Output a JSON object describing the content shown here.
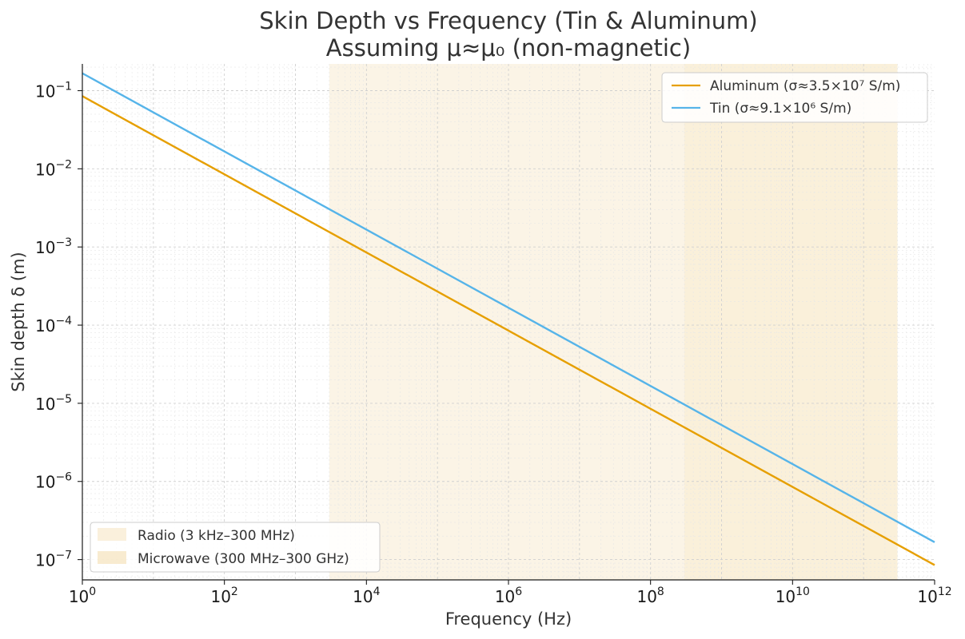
{
  "chart_data": {
    "type": "line",
    "title": "Skin Depth vs Frequency (Tin & Aluminum)",
    "subtitle": "Assuming μ≈μ₀ (non-magnetic)",
    "xlabel": "Frequency (Hz)",
    "ylabel": "Skin depth δ (m)",
    "x_scale": "log",
    "y_scale": "log",
    "xlim": [
      1,
      1000000000000.0
    ],
    "ylim": [
      5.5e-08,
      0.22
    ],
    "x_ticks": [
      {
        "value": 1,
        "base": "10",
        "exp": "0"
      },
      {
        "value": 100,
        "base": "10",
        "exp": "2"
      },
      {
        "value": 10000,
        "base": "10",
        "exp": "4"
      },
      {
        "value": 1000000,
        "base": "10",
        "exp": "6"
      },
      {
        "value": 100000000,
        "base": "10",
        "exp": "8"
      },
      {
        "value": 10000000000,
        "base": "10",
        "exp": "10"
      },
      {
        "value": 1000000000000,
        "base": "10",
        "exp": "12"
      }
    ],
    "y_ticks": [
      {
        "value": 0.1,
        "base": "10",
        "exp": "−1"
      },
      {
        "value": 0.01,
        "base": "10",
        "exp": "−2"
      },
      {
        "value": 0.001,
        "base": "10",
        "exp": "−3"
      },
      {
        "value": 0.0001,
        "base": "10",
        "exp": "−4"
      },
      {
        "value": 1e-05,
        "base": "10",
        "exp": "−5"
      },
      {
        "value": 1e-06,
        "base": "10",
        "exp": "−6"
      },
      {
        "value": 1e-07,
        "base": "10",
        "exp": "−7"
      }
    ],
    "grid": true,
    "series": [
      {
        "name": "Aluminum (σ≈3.5×10⁷ S/m)",
        "color": "#E69F00",
        "x": [
          1,
          1000000000000.0
        ],
        "y": [
          0.0851,
          8.51e-08
        ]
      },
      {
        "name": "Tin (σ≈9.1×10⁶ S/m)",
        "color": "#56B4E9",
        "x": [
          1,
          1000000000000.0
        ],
        "y": [
          0.1668,
          1.668e-07
        ]
      }
    ],
    "bands": [
      {
        "name": "Radio (3 kHz–300 MHz)",
        "from": 3000,
        "to": 300000000,
        "color": "#F5E3BC",
        "opacity": 0.38
      },
      {
        "name": "Microwave (300 MHz–300 GHz)",
        "from": 300000000,
        "to": 300000000000,
        "color": "#F5E3BC",
        "opacity": 0.55
      }
    ],
    "legend_position": "top-right",
    "band_legend_position": "bottom-left"
  }
}
